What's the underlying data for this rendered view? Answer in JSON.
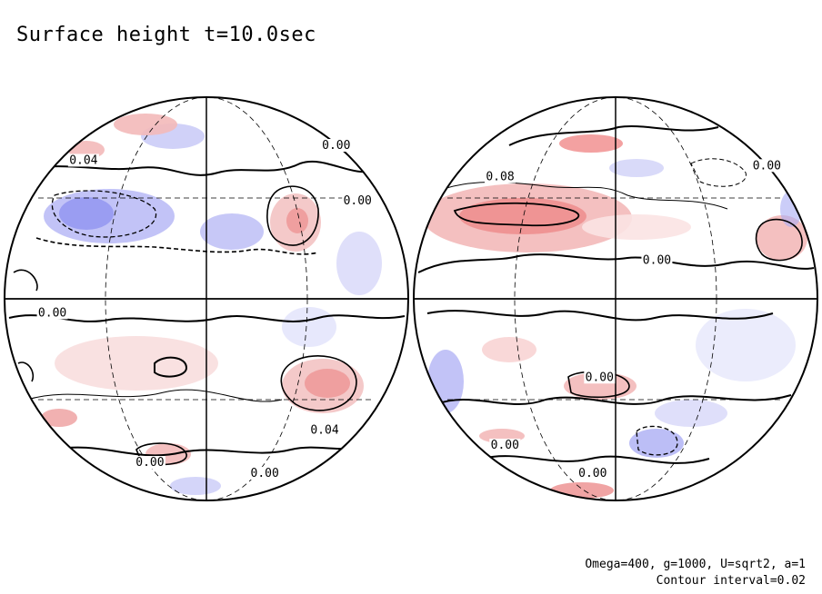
{
  "title": "Surface height t=10.0sec",
  "params": "Omega=400, g=1000, U=sqrt2, a=1",
  "contour_interval": "Contour interval=0.02",
  "colors": {
    "positive": "#f08a8a",
    "negative": "#8f92f0",
    "contour": "#000000",
    "background": "#ffffff"
  },
  "left_hemisphere": {
    "labels": [
      {
        "text": "0.04",
        "lat": 42,
        "lon": -55
      },
      {
        "text": "0.00",
        "lat": 48,
        "lon": 74
      },
      {
        "text": "0.00",
        "lat": 28,
        "lon": 58
      },
      {
        "text": "0.00",
        "lat": -5,
        "lon": -50
      },
      {
        "text": "0.04",
        "lat": -42,
        "lon": 52
      },
      {
        "text": "0.00",
        "lat": -56,
        "lon": -30
      },
      {
        "text": "0.00",
        "lat": -62,
        "lon": 38
      }
    ]
  },
  "right_hemisphere": {
    "labels": [
      {
        "text": "0.08",
        "lat": 36,
        "lon": -45
      },
      {
        "text": "0.00",
        "lat": 40,
        "lon": 78
      },
      {
        "text": "0.00",
        "lat": 10,
        "lon": 12
      },
      {
        "text": "0.00",
        "lat": -24,
        "lon": -5
      },
      {
        "text": "0.00",
        "lat": -48,
        "lon": -55
      },
      {
        "text": "0.00",
        "lat": -62,
        "lon": -14
      }
    ]
  }
}
